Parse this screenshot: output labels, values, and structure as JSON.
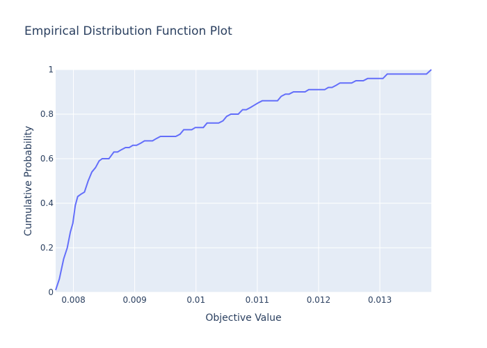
{
  "chart_data": {
    "type": "line",
    "title": "Empirical Distribution Function Plot",
    "xlabel": "Objective Value",
    "ylabel": "Cumulative Probability",
    "xlim": [
      0.00771,
      0.01384
    ],
    "ylim": [
      0,
      1
    ],
    "x_ticks": [
      0.008,
      0.009,
      0.01,
      0.011,
      0.012,
      0.013
    ],
    "x_tick_labels": [
      "0.008",
      "0.009",
      "0.01",
      "0.011",
      "0.012",
      "0.013"
    ],
    "y_ticks": [
      0,
      0.2,
      0.4,
      0.6,
      0.8,
      1
    ],
    "y_tick_labels": [
      "0",
      "0.2",
      "0.4",
      "0.6",
      "0.8",
      "1"
    ],
    "grid": true,
    "colors": {
      "plot_bg": "#e5ecf6",
      "grid": "#ffffff",
      "line": "#636efa",
      "text": "#2a3f5f"
    },
    "series": [
      {
        "x": [
          0.00771,
          0.00777,
          0.00784,
          0.0079,
          0.00795,
          0.00799,
          0.00803,
          0.00807,
          0.00812,
          0.00818,
          0.00824,
          0.0083,
          0.00836,
          0.00842,
          0.00847,
          0.00852,
          0.00858,
          0.00866,
          0.00872,
          0.00878,
          0.00885,
          0.00891,
          0.00897,
          0.00903,
          0.0091,
          0.00916,
          0.00923,
          0.00929,
          0.00935,
          0.00942,
          0.00948,
          0.00955,
          0.00961,
          0.00967,
          0.00974,
          0.0098,
          0.00986,
          0.00993,
          0.00999,
          0.01006,
          0.01012,
          0.01018,
          0.01025,
          0.01031,
          0.01037,
          0.01044,
          0.0105,
          0.01057,
          0.01063,
          0.01069,
          0.01076,
          0.01082,
          0.01089,
          0.01095,
          0.01101,
          0.01108,
          0.01114,
          0.0112,
          0.01127,
          0.01133,
          0.01139,
          0.01146,
          0.01152,
          0.01159,
          0.01165,
          0.01171,
          0.01178,
          0.01184,
          0.01191,
          0.01197,
          0.01203,
          0.0121,
          0.01216,
          0.01222,
          0.01229,
          0.01235,
          0.01242,
          0.01248,
          0.01254,
          0.01261,
          0.01267,
          0.01273,
          0.0128,
          0.01286,
          0.01293,
          0.01299,
          0.01305,
          0.01312,
          0.01318,
          0.01325,
          0.01331,
          0.01337,
          0.01344,
          0.0135,
          0.01356,
          0.01363,
          0.01369,
          0.01376,
          0.01384
        ],
        "y": [
          0.01,
          0.06,
          0.15,
          0.2,
          0.27,
          0.31,
          0.39,
          0.43,
          0.44,
          0.45,
          0.5,
          0.54,
          0.56,
          0.59,
          0.6,
          0.6,
          0.6,
          0.63,
          0.63,
          0.64,
          0.65,
          0.65,
          0.66,
          0.66,
          0.67,
          0.68,
          0.68,
          0.68,
          0.69,
          0.7,
          0.7,
          0.7,
          0.7,
          0.7,
          0.71,
          0.73,
          0.73,
          0.73,
          0.74,
          0.74,
          0.74,
          0.76,
          0.76,
          0.76,
          0.76,
          0.77,
          0.79,
          0.8,
          0.8,
          0.8,
          0.82,
          0.82,
          0.83,
          0.84,
          0.85,
          0.86,
          0.86,
          0.86,
          0.86,
          0.86,
          0.88,
          0.89,
          0.89,
          0.9,
          0.9,
          0.9,
          0.9,
          0.91,
          0.91,
          0.91,
          0.91,
          0.91,
          0.92,
          0.92,
          0.93,
          0.94,
          0.94,
          0.94,
          0.94,
          0.95,
          0.95,
          0.95,
          0.96,
          0.96,
          0.96,
          0.96,
          0.96,
          0.98,
          0.98,
          0.98,
          0.98,
          0.98,
          0.98,
          0.98,
          0.98,
          0.98,
          0.98,
          0.98,
          1.0
        ]
      }
    ]
  }
}
